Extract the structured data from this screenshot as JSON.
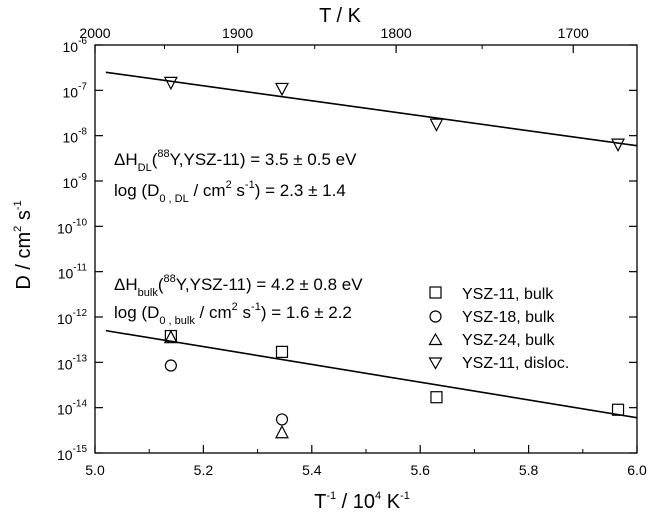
{
  "chart_data": {
    "type": "scatter",
    "x_axis": {
      "label_main": "T",
      "label_sup1": "-1",
      "label_mid": " / 10",
      "label_sup2": "4",
      "label_end": " K",
      "label_sup3": "-1",
      "range": [
        5.0,
        6.0
      ],
      "ticks": [
        "5.0",
        "5.2",
        "5.4",
        "5.6",
        "5.8",
        "6.0"
      ]
    },
    "top_axis": {
      "label": "T / K",
      "ticks": [
        {
          "label": "2000",
          "value": 2000
        },
        {
          "label": "1900",
          "value": 1900
        },
        {
          "label": "1800",
          "value": 1800
        },
        {
          "label": "1700",
          "value": 1700
        }
      ]
    },
    "y_axis": {
      "label_main": "D / cm",
      "label_sup1": "2",
      "label_end": " s",
      "label_sup2": "-1",
      "scale": "log",
      "range_exp": [
        -15,
        -6
      ],
      "tick_base": "10",
      "tick_exponents": [
        "-15",
        "-14",
        "-13",
        "-12",
        "-11",
        "-10",
        "-9",
        "-8",
        "-7",
        "-6"
      ]
    },
    "series": [
      {
        "name": "YSZ-11, bulk",
        "marker": "square",
        "points": [
          [
            5.14,
            3.8e-13
          ],
          [
            5.345,
            1.7e-13
          ],
          [
            5.63,
            1.7e-14
          ],
          [
            5.965,
            9e-15
          ]
        ]
      },
      {
        "name": "YSZ-18, bulk",
        "marker": "circle",
        "points": [
          [
            5.14,
            8.5e-14
          ],
          [
            5.345,
            5.5e-15
          ]
        ]
      },
      {
        "name": "YSZ-24, bulk",
        "marker": "triangle-up",
        "points": [
          [
            5.14,
            3.5e-13
          ],
          [
            5.345,
            2.8e-15
          ]
        ]
      },
      {
        "name": "YSZ-11, disloc.",
        "marker": "triangle-down",
        "points": [
          [
            5.14,
            1.5e-07
          ],
          [
            5.345,
            1.1e-07
          ],
          [
            5.63,
            1.8e-08
          ],
          [
            5.965,
            6.5e-09
          ]
        ]
      }
    ],
    "fit_lines": [
      {
        "name": "dislocation fit",
        "from": [
          5.02,
          2.5e-07
        ],
        "to": [
          6.0,
          6e-09
        ]
      },
      {
        "name": "bulk fit",
        "from": [
          5.02,
          5e-13
        ],
        "to": [
          6.0,
          6e-15
        ]
      }
    ],
    "annotations": {
      "dl_enthalpy": {
        "a": "ΔH",
        "b": "DL",
        "c": "(",
        "d": "88",
        "e": "Y,YSZ-11) = 3.5 ± 0.5 eV"
      },
      "dl_prefactor": {
        "a": "log (D",
        "b": "0 , DL",
        "c": " / cm",
        "d": "2",
        "e": " s",
        "f": "-1",
        "g": ") = 2.3 ± 1.4"
      },
      "bulk_enthalpy": {
        "a": "ΔH",
        "b": "bulk",
        "c": "(",
        "d": "88",
        "e": "Y,YSZ-11) = 4.2 ± 0.8 eV"
      },
      "bulk_prefactor": {
        "a": "log (D",
        "b": "0 , bulk",
        "c": " / cm",
        "d": "2",
        "e": " s",
        "f": "-1",
        "g": ") = 1.6 ± 2.2"
      }
    },
    "legend_position": "center-right"
  }
}
